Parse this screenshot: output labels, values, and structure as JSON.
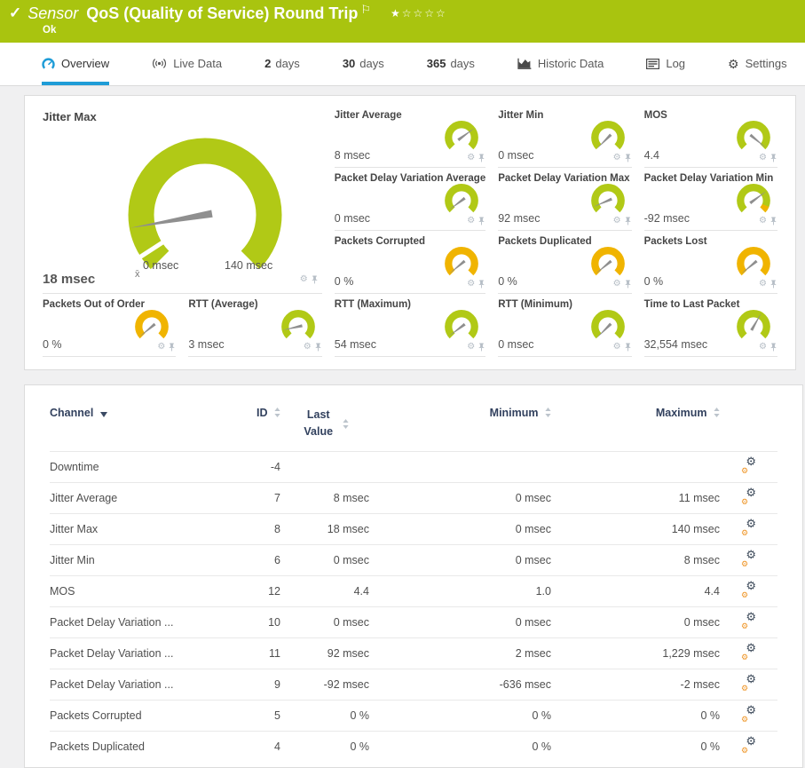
{
  "header": {
    "status_icon": "✓",
    "kind_label": "Sensor",
    "title": "QoS (Quality of Service) Round Trip",
    "flag_icon": "⚐",
    "stars": {
      "filled": 1,
      "total": 5,
      "filled_glyph": "★",
      "empty_glyph": "☆"
    },
    "status_text": "Ok"
  },
  "tabs": [
    {
      "label": "Overview",
      "icon": "gauge-icon",
      "active": true
    },
    {
      "label": "Live Data",
      "icon": "broadcast-icon",
      "active": false
    },
    {
      "number": "2",
      "label": "days",
      "active": false
    },
    {
      "number": "30",
      "label": "days",
      "active": false
    },
    {
      "number": "365",
      "label": "days",
      "active": false
    },
    {
      "label": "Historic Data",
      "icon": "chart-icon",
      "active": false
    },
    {
      "label": "Log",
      "icon": "log-icon",
      "active": false
    },
    {
      "label": "Settings",
      "icon": "gear-icon",
      "active": false
    }
  ],
  "colors": {
    "status_lime": "#a9c40f",
    "gauge_green": "#b1c916",
    "gauge_yellow": "#f0b400",
    "needle_gray": "#8f8f8f",
    "active_tab_blue": "#1e9cd7",
    "table_header_navy": "#32415e"
  },
  "gauges": {
    "big": {
      "title": "Jitter Max",
      "value": "18 msec",
      "min_label": "0 msec",
      "max_label": "140 msec",
      "avg_marker": "x̄",
      "fraction": 0.13,
      "color": "gauge_green"
    },
    "small": [
      {
        "title": "Jitter Average",
        "value": "8 msec",
        "fraction": 0.7,
        "color": "gauge_green"
      },
      {
        "title": "Jitter Min",
        "value": "0 msec",
        "fraction": 0.0,
        "color": "gauge_green"
      },
      {
        "title": "MOS",
        "value": "4.4",
        "fraction": 0.98,
        "color": "gauge_green"
      },
      {
        "title": "Packet Delay Variation Average",
        "value": "0 msec",
        "fraction": 0.03,
        "color": "gauge_green"
      },
      {
        "title": "Packet Delay Variation Max",
        "value": "92 msec",
        "fraction": 0.08,
        "color": "gauge_green"
      },
      {
        "title": "Packet Delay Variation Min",
        "value": "-92 msec",
        "fraction": 0.7,
        "color": "gauge_green",
        "tip_color": "gauge_yellow"
      },
      {
        "title": "Packets Corrupted",
        "value": "0 %",
        "fraction": 0.02,
        "color": "gauge_yellow"
      },
      {
        "title": "Packets Duplicated",
        "value": "0 %",
        "fraction": 0.02,
        "color": "gauge_yellow"
      },
      {
        "title": "Packets Lost",
        "value": "0 %",
        "fraction": 0.02,
        "color": "gauge_yellow"
      },
      {
        "title": "Packets Out of Order",
        "value": "0 %",
        "fraction": 0.02,
        "color": "gauge_yellow"
      },
      {
        "title": "RTT (Average)",
        "value": "3 msec",
        "fraction": 0.12,
        "color": "gauge_green"
      },
      {
        "title": "RTT (Maximum)",
        "value": "54 msec",
        "fraction": 0.03,
        "color": "gauge_green"
      },
      {
        "title": "RTT (Minimum)",
        "value": "0 msec",
        "fraction": 0.0,
        "color": "gauge_green"
      },
      {
        "title": "Time to Last Packet",
        "value": "32,554 msec",
        "fraction": 0.61,
        "color": "gauge_green"
      }
    ]
  },
  "table": {
    "columns": [
      "Channel",
      "ID",
      "Last Value",
      "Minimum",
      "Maximum"
    ],
    "rows": [
      {
        "channel": "Downtime",
        "id": "-4",
        "last": "",
        "min": "",
        "max": ""
      },
      {
        "channel": "Jitter Average",
        "id": "7",
        "last": "8 msec",
        "min": "0 msec",
        "max": "11 msec"
      },
      {
        "channel": "Jitter Max",
        "id": "8",
        "last": "18 msec",
        "min": "0 msec",
        "max": "140 msec"
      },
      {
        "channel": "Jitter Min",
        "id": "6",
        "last": "0 msec",
        "min": "0 msec",
        "max": "8 msec"
      },
      {
        "channel": "MOS",
        "id": "12",
        "last": "4.4",
        "min": "1.0",
        "max": "4.4"
      },
      {
        "channel": "Packet Delay Variation ...",
        "id": "10",
        "last": "0 msec",
        "min": "0 msec",
        "max": "0 msec"
      },
      {
        "channel": "Packet Delay Variation ...",
        "id": "11",
        "last": "92 msec",
        "min": "2 msec",
        "max": "1,229 msec"
      },
      {
        "channel": "Packet Delay Variation ...",
        "id": "9",
        "last": "-92 msec",
        "min": "-636 msec",
        "max": "-2 msec"
      },
      {
        "channel": "Packets Corrupted",
        "id": "5",
        "last": "0 %",
        "min": "0 %",
        "max": "0 %"
      },
      {
        "channel": "Packets Duplicated",
        "id": "4",
        "last": "0 %",
        "min": "0 %",
        "max": "0 %"
      }
    ]
  }
}
